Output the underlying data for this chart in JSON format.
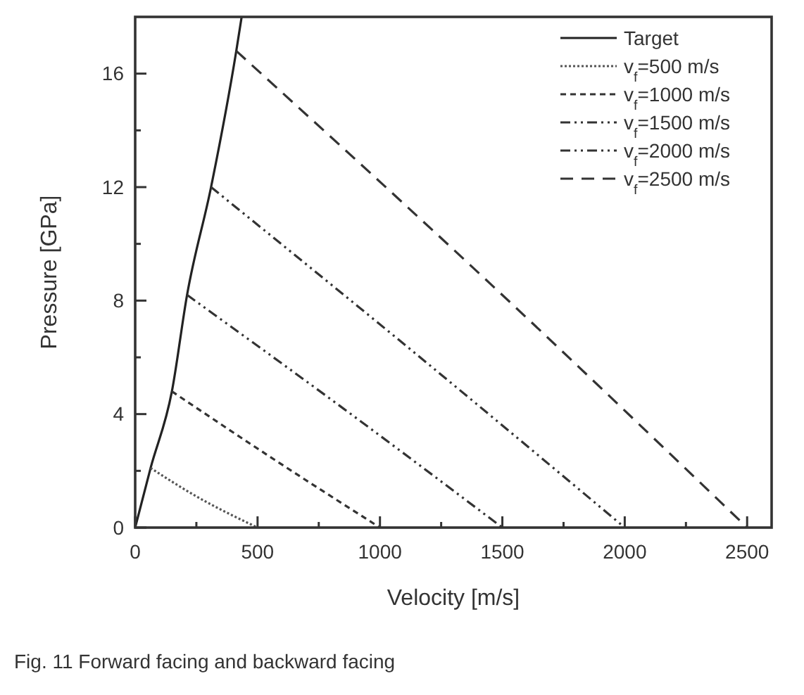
{
  "chart_data": {
    "type": "line",
    "xlabel": "Velocity [m/s]",
    "ylabel": "Pressure [GPa]",
    "xlim": [
      0,
      2600
    ],
    "ylim": [
      0,
      18
    ],
    "xticks": [
      0,
      {
        "value": 250,
        "label": null
      },
      500,
      {
        "value": 750,
        "label": null
      },
      1000,
      {
        "value": 1250,
        "label": null
      },
      1500,
      {
        "value": 1750,
        "label": null
      },
      2000,
      {
        "value": 2250,
        "label": null
      },
      2500
    ],
    "yticks": [
      0,
      {
        "value": 2,
        "label": null
      },
      4,
      {
        "value": 6,
        "label": null
      },
      8,
      {
        "value": 10,
        "label": null
      },
      12,
      {
        "value": 14,
        "label": null
      },
      16
    ],
    "grid": false,
    "legend": "top right",
    "marker": "none",
    "annotations": [
      "Fig. 11 Forward facing and backward facing"
    ],
    "series": [
      {
        "name": "Target",
        "color": "#222222",
        "line_style": "solid",
        "x": [
          0,
          63,
          150,
          212,
          310,
          413,
          435
        ],
        "values": [
          0,
          2.1,
          4.8,
          8.2,
          12.0,
          16.8,
          18
        ]
      },
      {
        "name": "v$_{f}$=500 m/s",
        "color": "#555555",
        "line_style": "dotted",
        "x": [
          63,
          250,
          500
        ],
        "values": [
          2.1,
          1.1,
          0
        ]
      },
      {
        "name": "v$_{f}$=1000 m/s",
        "color": "#333333",
        "line_style": "dashed",
        "x": [
          150,
          550,
          1000
        ],
        "values": [
          4.8,
          2.5,
          0
        ]
      },
      {
        "name": "v$_{f}$=1500 m/s",
        "color": "#333333",
        "line_style": "dashdotdot",
        "x": [
          212,
          850,
          1500
        ],
        "values": [
          8.2,
          4.2,
          0
        ]
      },
      {
        "name": "v$_{f}$=2000 m/s",
        "color": "#333333",
        "line_style": "dashdotdot",
        "x": [
          310,
          1150,
          2000
        ],
        "values": [
          12.0,
          6.1,
          0
        ]
      },
      {
        "name": "v$_{f}$=2500 m/s",
        "color": "#333333",
        "line_style": "longdash",
        "x": [
          413,
          1450,
          2500
        ],
        "values": [
          16.8,
          8.6,
          0
        ]
      }
    ]
  }
}
